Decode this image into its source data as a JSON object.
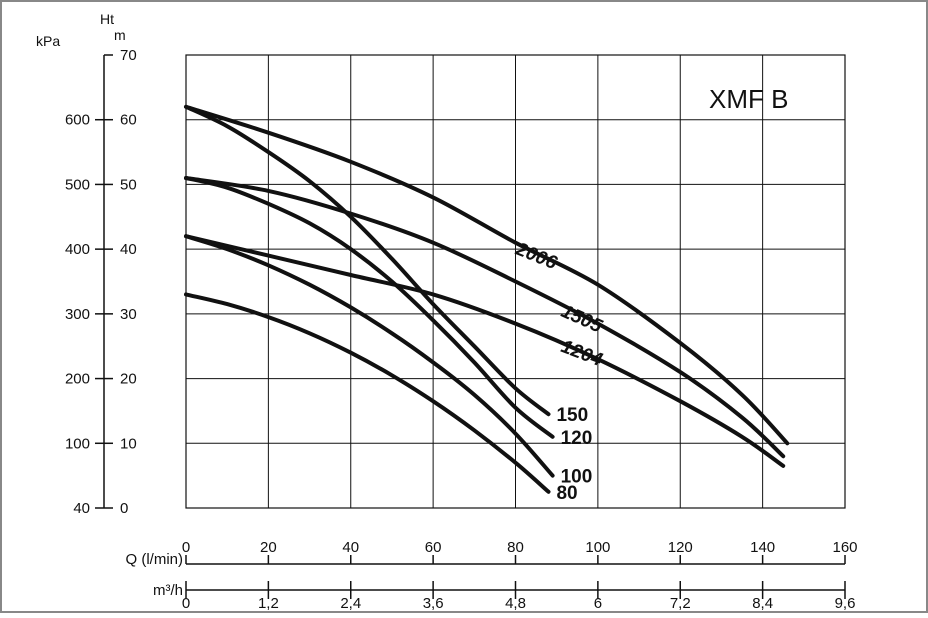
{
  "chart_data": {
    "type": "line",
    "title": "XMF B",
    "x_primary": {
      "label": "Q (l/min)",
      "ticks": [
        "0",
        "20",
        "40",
        "60",
        "80",
        "100",
        "120",
        "140",
        "160"
      ],
      "range": [
        0,
        160
      ]
    },
    "x_secondary": {
      "label": "m³/h",
      "ticks": [
        "0",
        "1,2",
        "2,4",
        "3,6",
        "4,8",
        "6",
        "7,2",
        "8,4",
        "9,6"
      ]
    },
    "y_left": {
      "label": "kPa",
      "ticks": [
        "40",
        "100",
        "200",
        "300",
        "400",
        "500",
        "600"
      ]
    },
    "y_right": {
      "label_top": "Ht",
      "label": "m",
      "ticks": [
        "0",
        "10",
        "20",
        "30",
        "40",
        "50",
        "60",
        "70"
      ],
      "range": [
        0,
        70
      ]
    },
    "grid": true,
    "series": [
      {
        "name": "80",
        "label_style": "end",
        "points": [
          [
            0,
            33
          ],
          [
            10,
            31.5
          ],
          [
            20,
            29.5
          ],
          [
            30,
            27
          ],
          [
            40,
            24
          ],
          [
            50,
            20.5
          ],
          [
            60,
            16.5
          ],
          [
            70,
            12
          ],
          [
            80,
            7
          ],
          [
            88,
            2.5
          ]
        ]
      },
      {
        "name": "100",
        "label_style": "end",
        "points": [
          [
            0,
            42
          ],
          [
            10,
            40
          ],
          [
            20,
            37.5
          ],
          [
            30,
            34.5
          ],
          [
            40,
            31
          ],
          [
            50,
            27
          ],
          [
            60,
            22.5
          ],
          [
            70,
            17.5
          ],
          [
            80,
            11.5
          ],
          [
            89,
            5
          ]
        ]
      },
      {
        "name": "120",
        "label_style": "end",
        "points": [
          [
            0,
            51
          ],
          [
            10,
            49.5
          ],
          [
            20,
            47
          ],
          [
            30,
            44
          ],
          [
            40,
            40
          ],
          [
            50,
            35
          ],
          [
            60,
            29
          ],
          [
            70,
            22.5
          ],
          [
            80,
            15.5
          ],
          [
            89,
            11
          ]
        ]
      },
      {
        "name": "150",
        "label_style": "end",
        "points": [
          [
            0,
            62
          ],
          [
            10,
            59
          ],
          [
            20,
            55
          ],
          [
            30,
            50.5
          ],
          [
            40,
            45
          ],
          [
            50,
            38.5
          ],
          [
            60,
            31.5
          ],
          [
            70,
            25
          ],
          [
            80,
            18.5
          ],
          [
            88,
            14.5
          ]
        ]
      },
      {
        "name": "1204",
        "label_style": "inline",
        "label_at": 100,
        "label_angle": 21,
        "points": [
          [
            0,
            42
          ],
          [
            20,
            39
          ],
          [
            40,
            36
          ],
          [
            60,
            33
          ],
          [
            80,
            28.5
          ],
          [
            100,
            23
          ],
          [
            120,
            16.5
          ],
          [
            135,
            11
          ],
          [
            145,
            6.5
          ]
        ]
      },
      {
        "name": "1505",
        "label_style": "inline",
        "label_at": 100,
        "label_angle": 24,
        "points": [
          [
            0,
            51
          ],
          [
            20,
            49
          ],
          [
            40,
            45.5
          ],
          [
            60,
            41
          ],
          [
            80,
            35
          ],
          [
            100,
            28.5
          ],
          [
            120,
            21
          ],
          [
            135,
            14
          ],
          [
            145,
            8
          ]
        ]
      },
      {
        "name": "2006",
        "label_style": "inline",
        "label_at": 89,
        "label_angle": 22,
        "points": [
          [
            0,
            62
          ],
          [
            20,
            58
          ],
          [
            40,
            53.5
          ],
          [
            60,
            48
          ],
          [
            80,
            41
          ],
          [
            100,
            34.5
          ],
          [
            120,
            25.5
          ],
          [
            135,
            17.5
          ],
          [
            146,
            10
          ]
        ]
      }
    ]
  }
}
